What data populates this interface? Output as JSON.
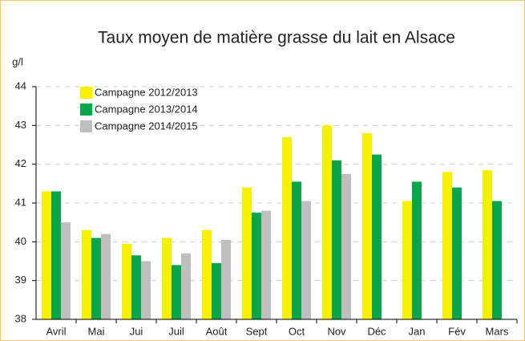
{
  "chart_data": {
    "type": "bar",
    "title": "Taux moyen de matière grasse du lait en Alsace",
    "y_label": "g/l",
    "categories": [
      "Avril",
      "Mai",
      "Jui",
      "Juil",
      "Août",
      "Sept",
      "Oct",
      "Nov",
      "Déc",
      "Jan",
      "Fév",
      "Mars"
    ],
    "series": [
      {
        "name": "Campagne 2012/2013",
        "color": "#f7f000",
        "values": [
          41.3,
          40.3,
          39.95,
          40.1,
          40.3,
          41.4,
          42.7,
          43.0,
          42.8,
          41.05,
          41.8,
          41.85
        ]
      },
      {
        "name": "Campagne 2013/2014",
        "color": "#0aa64b",
        "values": [
          41.3,
          40.1,
          39.65,
          39.4,
          39.45,
          40.75,
          41.55,
          42.1,
          42.25,
          41.55,
          41.4,
          41.05
        ]
      },
      {
        "name": "Campagne 2014/2015",
        "color": "#bfbfbf",
        "values": [
          40.5,
          40.2,
          39.5,
          39.7,
          40.05,
          40.8,
          41.05,
          41.75,
          null,
          null,
          null,
          null
        ]
      }
    ],
    "ylim": [
      38,
      44
    ],
    "yticks": [
      38,
      39,
      40,
      41,
      42,
      43,
      44
    ],
    "grid": true,
    "legend": "top-left"
  }
}
